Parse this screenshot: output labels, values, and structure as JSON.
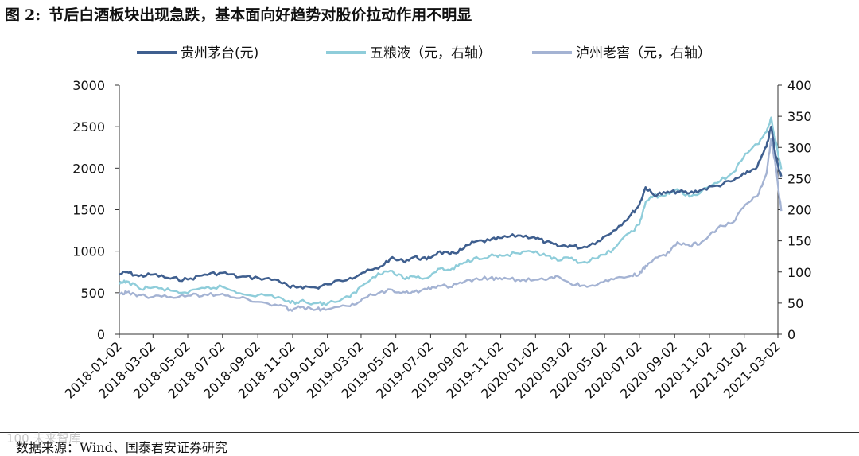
{
  "figure": {
    "label": "图",
    "number": "2:",
    "caption": "节后白酒板块出现急跌，基本面向好趋势对股价拉动作用不明显"
  },
  "source_text": "数据来源：Wind、国泰君安证券研究",
  "watermark_text": "100 未来智库",
  "chart_data": {
    "type": "line",
    "x_ticks": [
      "2018-01-02",
      "2018-03-02",
      "2018-05-02",
      "2018-07-02",
      "2018-09-02",
      "2018-11-02",
      "2019-01-02",
      "2019-03-02",
      "2019-05-02",
      "2019-07-02",
      "2019-09-02",
      "2019-11-02",
      "2020-01-02",
      "2020-03-02",
      "2020-05-02",
      "2020-07-02",
      "2020-09-02",
      "2020-11-02",
      "2021-01-02",
      "2021-03-02"
    ],
    "y_left": {
      "min": 0,
      "max": 3000,
      "ticks": [
        0,
        500,
        1000,
        1500,
        2000,
        2500,
        3000
      ]
    },
    "y_right": {
      "min": 0,
      "max": 400,
      "ticks": [
        0,
        50,
        100,
        150,
        200,
        250,
        300,
        350,
        400
      ]
    },
    "legend_position": "top",
    "series": [
      {
        "name": "贵州茅台(元)",
        "axis": "left",
        "color": "#3f5f8f",
        "x": [
          "2018-01-02",
          "2018-01-15",
          "2018-02-05",
          "2018-03-02",
          "2018-04-02",
          "2018-05-02",
          "2018-06-01",
          "2018-07-02",
          "2018-08-01",
          "2018-09-03",
          "2018-10-08",
          "2018-10-29",
          "2018-11-15",
          "2018-12-14",
          "2019-01-02",
          "2019-02-11",
          "2019-03-04",
          "2019-04-01",
          "2019-04-22",
          "2019-05-15",
          "2019-06-03",
          "2019-06-25",
          "2019-07-15",
          "2019-08-05",
          "2019-08-26",
          "2019-09-16",
          "2019-10-14",
          "2019-11-04",
          "2019-12-02",
          "2019-12-30",
          "2020-01-20",
          "2020-02-10",
          "2020-03-02",
          "2020-03-23",
          "2020-04-20",
          "2020-05-18",
          "2020-06-15",
          "2020-07-02",
          "2020-07-13",
          "2020-07-27",
          "2020-08-17",
          "2020-09-07",
          "2020-09-28",
          "2020-10-19",
          "2020-11-16",
          "2020-12-14",
          "2021-01-04",
          "2021-01-25",
          "2021-02-10",
          "2021-02-18",
          "2021-02-26",
          "2021-03-08"
        ],
        "y": [
          720,
          750,
          700,
          720,
          670,
          660,
          720,
          740,
          690,
          680,
          650,
          560,
          575,
          560,
          600,
          680,
          740,
          790,
          910,
          880,
          930,
          900,
          990,
          960,
          1020,
          1110,
          1130,
          1160,
          1190,
          1170,
          1110,
          1060,
          1070,
          1040,
          1120,
          1250,
          1420,
          1560,
          1770,
          1680,
          1700,
          1720,
          1700,
          1740,
          1790,
          1850,
          1930,
          2020,
          2260,
          2500,
          2150,
          1900
        ]
      },
      {
        "name": "五粮液（元，右轴）",
        "axis": "right",
        "color": "#8fcdda",
        "x": [
          "2018-01-02",
          "2018-01-15",
          "2018-02-05",
          "2018-03-02",
          "2018-04-02",
          "2018-05-02",
          "2018-06-01",
          "2018-07-02",
          "2018-08-01",
          "2018-09-03",
          "2018-10-08",
          "2018-10-29",
          "2018-11-15",
          "2018-12-14",
          "2019-01-02",
          "2019-02-11",
          "2019-03-04",
          "2019-04-01",
          "2019-04-22",
          "2019-05-15",
          "2019-06-03",
          "2019-06-25",
          "2019-07-15",
          "2019-08-05",
          "2019-08-26",
          "2019-09-16",
          "2019-10-14",
          "2019-11-04",
          "2019-12-02",
          "2019-12-30",
          "2020-01-20",
          "2020-02-10",
          "2020-03-02",
          "2020-03-23",
          "2020-04-20",
          "2020-05-18",
          "2020-06-15",
          "2020-07-02",
          "2020-07-13",
          "2020-07-27",
          "2020-08-17",
          "2020-09-07",
          "2020-09-28",
          "2020-10-19",
          "2020-11-16",
          "2020-12-14",
          "2021-01-04",
          "2021-01-25",
          "2021-02-10",
          "2021-02-18",
          "2021-02-26",
          "2021-03-08"
        ],
        "y": [
          80,
          85,
          74,
          75,
          70,
          66,
          74,
          76,
          66,
          63,
          60,
          50,
          53,
          50,
          49,
          60,
          78,
          98,
          102,
          90,
          93,
          90,
          105,
          103,
          113,
          122,
          126,
          126,
          130,
          131,
          126,
          118,
          122,
          115,
          122,
          137,
          163,
          176,
          212,
          222,
          223,
          233,
          221,
          229,
          243,
          260,
          290,
          305,
          325,
          348,
          310,
          265
        ]
      },
      {
        "name": "泸州老窖（元，右轴）",
        "axis": "right",
        "color": "#a4b3d3",
        "x": [
          "2018-01-02",
          "2018-01-15",
          "2018-02-05",
          "2018-03-02",
          "2018-04-02",
          "2018-05-02",
          "2018-06-01",
          "2018-07-02",
          "2018-08-01",
          "2018-09-03",
          "2018-10-08",
          "2018-10-29",
          "2018-11-15",
          "2018-12-14",
          "2019-01-02",
          "2019-02-11",
          "2019-03-04",
          "2019-04-01",
          "2019-04-22",
          "2019-05-15",
          "2019-06-03",
          "2019-06-25",
          "2019-07-15",
          "2019-08-05",
          "2019-08-26",
          "2019-09-16",
          "2019-10-14",
          "2019-11-04",
          "2019-12-02",
          "2019-12-30",
          "2020-01-20",
          "2020-02-10",
          "2020-03-02",
          "2020-03-23",
          "2020-04-20",
          "2020-05-18",
          "2020-06-15",
          "2020-07-02",
          "2020-07-13",
          "2020-07-27",
          "2020-08-17",
          "2020-09-07",
          "2020-09-28",
          "2020-10-19",
          "2020-11-16",
          "2020-12-14",
          "2021-01-04",
          "2021-01-25",
          "2021-02-10",
          "2021-02-18",
          "2021-02-26",
          "2021-03-08"
        ],
        "y": [
          65,
          67,
          63,
          60,
          60,
          62,
          64,
          65,
          58,
          52,
          46,
          40,
          43,
          40,
          40,
          45,
          57,
          66,
          72,
          68,
          68,
          72,
          78,
          76,
          82,
          88,
          90,
          88,
          88,
          87,
          87,
          93,
          82,
          78,
          80,
          88,
          93,
          96,
          110,
          120,
          126,
          148,
          142,
          148,
          170,
          180,
          208,
          222,
          258,
          314,
          270,
          198
        ]
      }
    ]
  }
}
